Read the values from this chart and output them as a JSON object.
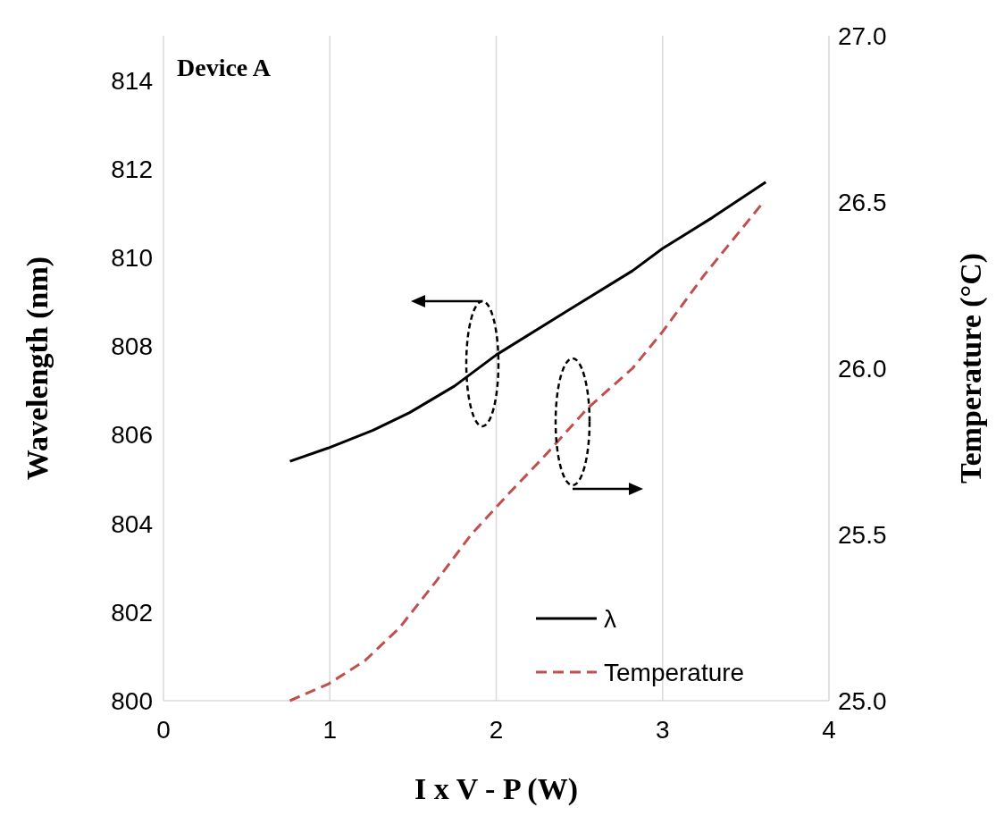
{
  "chart_data": {
    "type": "line",
    "xlabel": "I x V - P (W)",
    "ylabel": "Wavelength (nm)",
    "y2label": "Temperature (°C)",
    "annotations": [
      "Device A"
    ],
    "xlim": [
      0,
      4
    ],
    "xticks": [
      0,
      1,
      2,
      3,
      4
    ],
    "ylim": [
      800,
      815
    ],
    "yticks": [
      800,
      802,
      804,
      806,
      808,
      810,
      812,
      814
    ],
    "y2lim": [
      25,
      27
    ],
    "y2ticks": [
      {
        "value": 25,
        "label": "25.0"
      },
      {
        "value": 25.5,
        "label": "25.5"
      },
      {
        "value": 26,
        "label": "26.0"
      },
      {
        "value": 26.5,
        "label": "26.5"
      },
      {
        "value": 27,
        "label": "27.0"
      }
    ],
    "grid": "x",
    "legend": "bottom right",
    "series": [
      {
        "name": "λ",
        "color": "#000000",
        "line_style": "solid",
        "x": [
          0.76,
          0.99,
          1.26,
          1.48,
          1.75,
          2.0,
          2.43,
          2.82,
          3.0,
          3.3,
          3.62
        ],
        "values": [
          805.4,
          805.7,
          806.1,
          806.5,
          807.1,
          807.8,
          808.8,
          809.7,
          810.2,
          810.9,
          811.7
        ]
      },
      {
        "name": "Temperature",
        "color": "#c0504d",
        "line_style": "dashed",
        "axis": "y2",
        "x": [
          0.76,
          0.99,
          1.21,
          1.42,
          1.64,
          1.85,
          2.07,
          2.28,
          2.55,
          2.82,
          3.0,
          3.25,
          3.59
        ],
        "values": [
          25.0,
          25.05,
          25.12,
          25.22,
          25.36,
          25.5,
          25.62,
          25.73,
          25.88,
          26.0,
          26.11,
          26.28,
          26.49
        ]
      }
    ]
  }
}
